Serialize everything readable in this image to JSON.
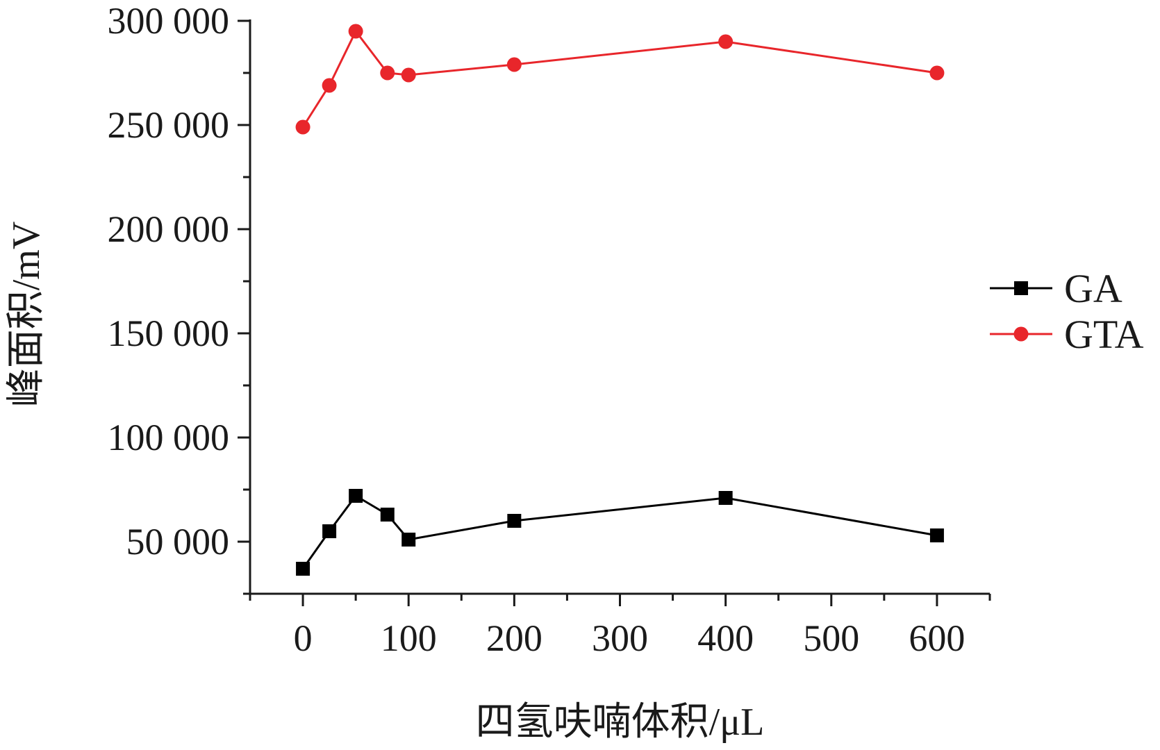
{
  "chart_data": {
    "type": "line",
    "title": "",
    "xlabel": "四氢呋喃体积/μL",
    "ylabel": "峰面积/mV",
    "xlim": [
      -50,
      650
    ],
    "ylim": [
      25000,
      300000
    ],
    "xticks": [
      0,
      100,
      200,
      300,
      400,
      500,
      600
    ],
    "xtick_labels": [
      "0",
      "100",
      "200",
      "300",
      "400",
      "500",
      "600"
    ],
    "yticks": [
      50000,
      100000,
      150000,
      200000,
      250000,
      300000
    ],
    "ytick_labels": [
      "50 000",
      "100 000",
      "150 000",
      "200 000",
      "250 000",
      "300 000"
    ],
    "grid": false,
    "legend_position": "right",
    "series": [
      {
        "name": "GA",
        "color": "#000000",
        "marker": "square",
        "x": [
          0,
          25,
          50,
          80,
          100,
          200,
          400,
          600
        ],
        "y": [
          37000,
          55000,
          72000,
          63000,
          51000,
          60000,
          71000,
          53000
        ]
      },
      {
        "name": "GTA",
        "color": "#e8262b",
        "marker": "circle",
        "x": [
          0,
          25,
          50,
          80,
          100,
          200,
          400,
          600
        ],
        "y": [
          249000,
          269000,
          295000,
          275000,
          274000,
          279000,
          290000,
          275000
        ]
      }
    ]
  }
}
